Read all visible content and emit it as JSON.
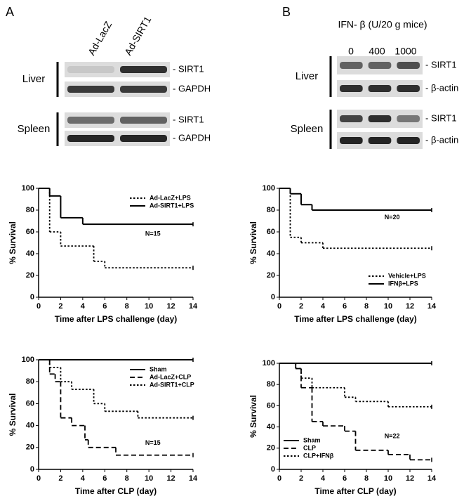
{
  "panels": [
    {
      "letter": "A",
      "lanes": [
        "Ad-LacZ",
        "Ad-SIRT1"
      ],
      "tissues": [
        {
          "name": "Liver",
          "proteins": [
            "- SIRT1",
            "- GAPDH"
          ]
        },
        {
          "name": "Spleen",
          "proteins": [
            "- SIRT1",
            "- GAPDH"
          ]
        }
      ]
    },
    {
      "letter": "B",
      "header": "IFN- β (U/20 g mice)",
      "lanes": [
        "0",
        "400",
        "1000"
      ],
      "tissues": [
        {
          "name": "Liver",
          "proteins": [
            "- SIRT1",
            "- β-actin"
          ]
        },
        {
          "name": "Spleen",
          "proteins": [
            "- SIRT1",
            "- β-actin"
          ]
        }
      ]
    }
  ],
  "chart_data": [
    {
      "type": "step",
      "xlabel": "Time after LPS challenge (day)",
      "ylabel": "% Survival",
      "annotation": "N=15",
      "xlim": [
        0,
        14
      ],
      "xticks": [
        0,
        2,
        4,
        6,
        8,
        10,
        12,
        14
      ],
      "ylim": [
        0,
        100
      ],
      "yticks": [
        0,
        20,
        40,
        60,
        80,
        100
      ],
      "legend": "upper right",
      "series": [
        {
          "name": "Ad-LacZ+LPS",
          "color": "#000000",
          "style": "dotted",
          "x": [
            0,
            1,
            2,
            5,
            6,
            14
          ],
          "values": [
            100,
            60,
            47,
            33,
            27,
            27
          ]
        },
        {
          "name": "Ad-SIRT1+LPS",
          "color": "#000000",
          "style": "solid",
          "x": [
            0,
            1,
            2,
            4,
            14
          ],
          "values": [
            100,
            93,
            73,
            67,
            67
          ]
        }
      ]
    },
    {
      "type": "step",
      "xlabel": "Time after LPS challenge (day)",
      "ylabel": "% Survival",
      "annotation": "N=20",
      "xlim": [
        0,
        14
      ],
      "xticks": [
        0,
        2,
        4,
        6,
        8,
        10,
        12,
        14
      ],
      "ylim": [
        0,
        100
      ],
      "yticks": [
        0,
        20,
        40,
        60,
        80,
        100
      ],
      "legend": "lower right",
      "series": [
        {
          "name": "Vehicle+LPS",
          "color": "#000000",
          "style": "dotted",
          "x": [
            0,
            1,
            2,
            4,
            14
          ],
          "values": [
            100,
            55,
            50,
            45,
            45
          ]
        },
        {
          "name": "IFNβ+LPS",
          "color": "#000000",
          "style": "solid",
          "x": [
            0,
            1,
            2,
            3,
            14
          ],
          "values": [
            100,
            95,
            85,
            80,
            80
          ]
        }
      ]
    },
    {
      "type": "step",
      "xlabel": "Time after CLP (day)",
      "ylabel": "% Survival",
      "annotation": "N=15",
      "xlim": [
        0,
        14
      ],
      "xticks": [
        0,
        2,
        4,
        6,
        8,
        10,
        12,
        14
      ],
      "ylim": [
        0,
        100
      ],
      "yticks": [
        0,
        20,
        40,
        60,
        80,
        100
      ],
      "legend": "upper right",
      "series": [
        {
          "name": "Sham",
          "color": "#000000",
          "style": "solid",
          "x": [
            0,
            14
          ],
          "values": [
            100,
            100
          ]
        },
        {
          "name": "Ad-LacZ+CLP",
          "color": "#000000",
          "style": "dashed",
          "x": [
            0,
            1,
            1.5,
            2,
            3,
            4.2,
            4.5,
            7,
            14
          ],
          "values": [
            100,
            87,
            80,
            47,
            40,
            27,
            20,
            13,
            13
          ]
        },
        {
          "name": "Ad-SIRT1+CLP",
          "color": "#000000",
          "style": "dotted",
          "x": [
            0,
            1,
            2,
            3,
            5,
            6,
            9,
            14
          ],
          "values": [
            100,
            93,
            80,
            73,
            60,
            53,
            47,
            47
          ]
        }
      ]
    },
    {
      "type": "step",
      "xlabel": "Time after CLP (day)",
      "ylabel": "% Survival",
      "annotation": "N=22",
      "xlim": [
        0,
        14
      ],
      "xticks": [
        0,
        2,
        4,
        6,
        8,
        10,
        12,
        14
      ],
      "ylim": [
        0,
        100
      ],
      "yticks": [
        0,
        20,
        40,
        60,
        80,
        100
      ],
      "legend": "lower left",
      "series": [
        {
          "name": "Sham",
          "color": "#000000",
          "style": "solid",
          "x": [
            0,
            14
          ],
          "values": [
            100,
            100
          ]
        },
        {
          "name": "CLP",
          "color": "#000000",
          "style": "dashed",
          "x": [
            0,
            1.5,
            2,
            3,
            4,
            6,
            7,
            10,
            12,
            14
          ],
          "values": [
            100,
            95,
            77,
            45,
            41,
            36,
            18,
            14,
            9,
            9
          ]
        },
        {
          "name": "CLP+IFNβ",
          "color": "#000000",
          "style": "dotted",
          "x": [
            0,
            1.5,
            2,
            3,
            6,
            7,
            10,
            14
          ],
          "values": [
            100,
            95,
            86,
            77,
            68,
            64,
            59,
            59
          ]
        }
      ]
    }
  ]
}
